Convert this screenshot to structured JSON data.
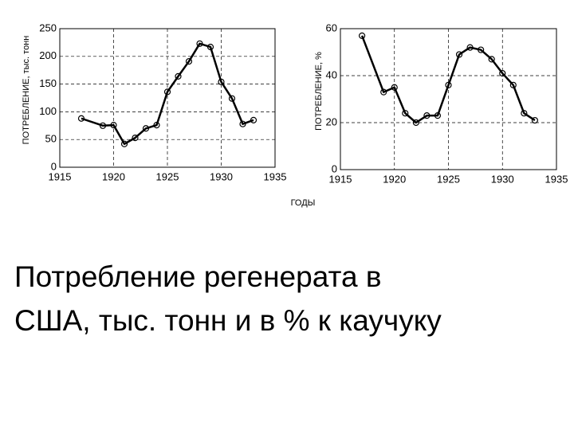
{
  "chart_data": [
    {
      "type": "line",
      "ylabel": "ПОТРЕБЛЕНИЕ, тыс. тонн",
      "x": [
        1917,
        1919,
        1920,
        1921,
        1922,
        1923,
        1924,
        1925,
        1926,
        1927,
        1928,
        1929,
        1930,
        1931,
        1932,
        1933
      ],
      "values": [
        88,
        75,
        76,
        42,
        53,
        70,
        76,
        136,
        164,
        191,
        223,
        217,
        154,
        124,
        78,
        85
      ],
      "color": "#000000",
      "markers": true,
      "grid": true,
      "xlim": [
        1915,
        1935
      ],
      "xticks": [
        1915,
        1920,
        1925,
        1930,
        1935
      ],
      "ylim": [
        0,
        250
      ],
      "yticks": [
        0,
        50,
        100,
        150,
        200,
        250
      ]
    },
    {
      "type": "line",
      "ylabel": "ПОТРЕБЛЕНИЕ, %",
      "x": [
        1917,
        1919,
        1920,
        1921,
        1922,
        1923,
        1924,
        1925,
        1926,
        1927,
        1928,
        1929,
        1930,
        1931,
        1932,
        1933
      ],
      "values": [
        57,
        33,
        35,
        24,
        20,
        23,
        23,
        36,
        49,
        52,
        51,
        47,
        41,
        36,
        24,
        21
      ],
      "color": "#000000",
      "markers": true,
      "grid": true,
      "xlim": [
        1915,
        1935
      ],
      "xticks": [
        1915,
        1920,
        1925,
        1930,
        1935
      ],
      "ylim": [
        0,
        60
      ],
      "yticks": [
        0,
        20,
        40,
        60
      ]
    }
  ],
  "shared_xlabel": "ГОДЫ",
  "caption": [
    "Потребление регенерата в",
    "США, тыс. тонн и в % к каучуку"
  ]
}
